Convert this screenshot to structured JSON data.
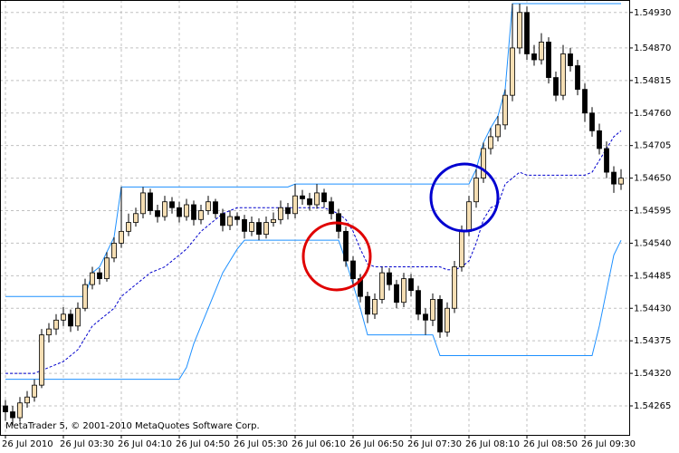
{
  "chart_data": {
    "type": "candlestick",
    "watermark": "MetaTrader 5, © 2001-2010 MetaQuotes Software Corp.",
    "categories": [
      "26 Jul 2010",
      null,
      null,
      null,
      null,
      null,
      null,
      null,
      "26 Jul 03:30",
      null,
      null,
      null,
      null,
      null,
      null,
      null,
      "26 Jul 04:10",
      null,
      null,
      null,
      null,
      null,
      null,
      null,
      "26 Jul 04:50",
      null,
      null,
      null,
      null,
      null,
      null,
      null,
      "26 Jul 05:30",
      null,
      null,
      null,
      null,
      null,
      null,
      null,
      "26 Jul 06:10",
      null,
      null,
      null,
      null,
      null,
      null,
      null,
      "26 Jul 06:50",
      null,
      null,
      null,
      null,
      null,
      null,
      null,
      "26 Jul 07:30",
      null,
      null,
      null,
      null,
      null,
      null,
      null,
      "26 Jul 08:10",
      null,
      null,
      null,
      null,
      null,
      null,
      null,
      "26 Jul 08:50",
      null,
      null,
      null,
      null,
      null,
      null,
      null,
      "26 Jul 09:30",
      null,
      null,
      null,
      null,
      null
    ],
    "open": [
      1.54265,
      1.54255,
      1.54245,
      1.5427,
      1.5428,
      1.543,
      1.54385,
      1.54395,
      1.5441,
      1.5442,
      1.544,
      1.5443,
      1.5447,
      1.5449,
      1.5448,
      1.54515,
      1.5454,
      1.5456,
      1.54575,
      1.5459,
      1.54625,
      1.54595,
      1.54585,
      1.5461,
      1.546,
      1.54585,
      1.54605,
      1.5458,
      1.54595,
      1.5461,
      1.5459,
      1.5457,
      1.54585,
      1.5458,
      1.5456,
      1.54575,
      1.54555,
      1.54575,
      1.5458,
      1.546,
      1.5459,
      1.5462,
      1.54615,
      1.54605,
      1.54625,
      1.5461,
      1.5459,
      1.5456,
      1.5451,
      1.5448,
      1.5445,
      1.5442,
      1.54445,
      1.5449,
      1.5447,
      1.5444,
      1.5448,
      1.5446,
      1.5442,
      1.5441,
      1.54445,
      1.5439,
      1.5443,
      1.545,
      1.5456,
      1.5461,
      1.5465,
      1.547,
      1.5472,
      1.5474,
      1.5479,
      1.5487,
      1.5493,
      1.5486,
      1.5485,
      1.5488,
      1.5482,
      1.5479,
      1.5486,
      1.5484,
      1.548,
      1.5476,
      1.5473,
      1.547,
      1.5466,
      1.5464
    ],
    "high": [
      1.54275,
      1.54265,
      1.5428,
      1.5429,
      1.5431,
      1.54395,
      1.54405,
      1.5442,
      1.54432,
      1.54428,
      1.5444,
      1.5448,
      1.545,
      1.54498,
      1.54525,
      1.5455,
      1.54635,
      1.5459,
      1.546,
      1.54635,
      1.54632,
      1.54605,
      1.5462,
      1.54618,
      1.5461,
      1.54615,
      1.54612,
      1.54605,
      1.5462,
      1.54615,
      1.54598,
      1.54595,
      1.54592,
      1.54588,
      1.54585,
      1.54582,
      1.54585,
      1.54592,
      1.54612,
      1.54608,
      1.5464,
      1.5463,
      1.54625,
      1.5464,
      1.54632,
      1.54618,
      1.54598,
      1.54568,
      1.54518,
      1.54488,
      1.54458,
      1.54455,
      1.545,
      1.54498,
      1.54478,
      1.5449,
      1.54488,
      1.54468,
      1.5443,
      1.54455,
      1.54452,
      1.5444,
      1.5451,
      1.5457,
      1.5462,
      1.54665,
      1.5471,
      1.54735,
      1.54755,
      1.548,
      1.54945,
      1.54945,
      1.5494,
      1.54875,
      1.54895,
      1.54888,
      1.5483,
      1.54875,
      1.5487,
      1.5485,
      1.5481,
      1.5477,
      1.54742,
      1.54712,
      1.5467,
      1.54665
    ],
    "low": [
      1.5424,
      1.54232,
      1.54238,
      1.54262,
      1.54272,
      1.54295,
      1.54372,
      1.54385,
      1.544,
      1.5439,
      1.54392,
      1.54425,
      1.54462,
      1.5447,
      1.54475,
      1.54508,
      1.54532,
      1.54552,
      1.54568,
      1.54582,
      1.54588,
      1.54575,
      1.54578,
      1.5459,
      1.54575,
      1.54578,
      1.5457,
      1.54572,
      1.54588,
      1.54582,
      1.5456,
      1.54562,
      1.5457,
      1.54548,
      1.54552,
      1.54545,
      1.54548,
      1.54568,
      1.54572,
      1.5458,
      1.54582,
      1.54605,
      1.54595,
      1.54598,
      1.546,
      1.5458,
      1.54548,
      1.545,
      1.5447,
      1.5444,
      1.54405,
      1.54412,
      1.54438,
      1.5446,
      1.5443,
      1.54432,
      1.5445,
      1.5441,
      1.54385,
      1.544,
      1.5438,
      1.54382,
      1.54422,
      1.54492,
      1.54552,
      1.546,
      1.54642,
      1.5469,
      1.54712,
      1.54732,
      1.5478,
      1.5486,
      1.5485,
      1.5484,
      1.54842,
      1.5481,
      1.5478,
      1.54782,
      1.5483,
      1.5479,
      1.54745,
      1.5472,
      1.5469,
      1.5465,
      1.54625,
      1.5463
    ],
    "close": [
      1.54255,
      1.54245,
      1.5427,
      1.5428,
      1.543,
      1.54385,
      1.54395,
      1.5441,
      1.5442,
      1.544,
      1.5443,
      1.5447,
      1.5449,
      1.5448,
      1.54515,
      1.5454,
      1.5456,
      1.54575,
      1.5459,
      1.54625,
      1.54595,
      1.54585,
      1.5461,
      1.546,
      1.54585,
      1.54605,
      1.5458,
      1.54595,
      1.5461,
      1.5459,
      1.5457,
      1.54585,
      1.5458,
      1.5456,
      1.54575,
      1.54555,
      1.54575,
      1.5458,
      1.546,
      1.5459,
      1.5462,
      1.54615,
      1.54605,
      1.54625,
      1.5461,
      1.5459,
      1.5456,
      1.5451,
      1.5448,
      1.5445,
      1.5442,
      1.54445,
      1.5449,
      1.5447,
      1.5444,
      1.5448,
      1.5446,
      1.5442,
      1.5441,
      1.54445,
      1.5439,
      1.5443,
      1.545,
      1.5456,
      1.5461,
      1.5465,
      1.547,
      1.5472,
      1.5474,
      1.5479,
      1.5487,
      1.5493,
      1.5486,
      1.5485,
      1.5488,
      1.5482,
      1.5479,
      1.5486,
      1.5484,
      1.548,
      1.5476,
      1.5473,
      1.547,
      1.5466,
      1.5464,
      1.5465
    ],
    "up_color": "#f5deb3",
    "down_color": "#000000",
    "lines": [
      {
        "color": "#1e90ff",
        "dash": false,
        "values": [
          1.5445,
          1.5445,
          1.5445,
          1.5445,
          1.5445,
          1.5445,
          1.5445,
          1.5445,
          1.5445,
          1.5445,
          1.5445,
          1.5445,
          1.5449,
          1.545,
          1.54525,
          1.5455,
          1.54635,
          1.54635,
          1.54635,
          1.54635,
          1.54635,
          1.54635,
          1.54635,
          1.54635,
          1.54635,
          1.54635,
          1.54635,
          1.54635,
          1.54635,
          1.54635,
          1.54635,
          1.54635,
          1.54635,
          1.54635,
          1.54635,
          1.54635,
          1.54635,
          1.54635,
          1.54635,
          1.54635,
          1.5464,
          1.5464,
          1.5464,
          1.5464,
          1.5464,
          1.5464,
          1.5464,
          1.5464,
          1.5464,
          1.5464,
          1.5464,
          1.5464,
          1.5464,
          1.5464,
          1.5464,
          1.5464,
          1.5464,
          1.5464,
          1.5464,
          1.5464,
          1.5464,
          1.5464,
          1.5464,
          1.5464,
          1.5464,
          1.54665,
          1.5471,
          1.54735,
          1.54755,
          1.548,
          1.54945,
          1.54945,
          1.54945,
          1.54945,
          1.54945,
          1.54945,
          1.54945,
          1.54945,
          1.54945,
          1.54945,
          1.54945,
          1.54945,
          1.54945,
          1.54945,
          1.54945,
          1.54945
        ]
      },
      {
        "color": "#1e90ff",
        "dash": false,
        "values": [
          1.5431,
          1.5431,
          1.5431,
          1.5431,
          1.5431,
          1.5431,
          1.5431,
          1.5431,
          1.5431,
          1.5431,
          1.5431,
          1.5431,
          1.5431,
          1.5431,
          1.5431,
          1.5431,
          1.5431,
          1.5431,
          1.5431,
          1.5431,
          1.5431,
          1.5431,
          1.5431,
          1.5431,
          1.5431,
          1.5433,
          1.5437,
          1.544,
          1.5443,
          1.5446,
          1.5449,
          1.5451,
          1.5453,
          1.54545,
          1.54545,
          1.54545,
          1.54545,
          1.54545,
          1.54545,
          1.54545,
          1.54545,
          1.54545,
          1.54545,
          1.54545,
          1.54545,
          1.54545,
          1.54545,
          1.5451,
          1.5447,
          1.5443,
          1.54385,
          1.54385,
          1.54385,
          1.54385,
          1.54385,
          1.54385,
          1.54385,
          1.54385,
          1.54385,
          1.54385,
          1.5435,
          1.5435,
          1.5435,
          1.5435,
          1.5435,
          1.5435,
          1.5435,
          1.5435,
          1.5435,
          1.5435,
          1.5435,
          1.5435,
          1.5435,
          1.5435,
          1.5435,
          1.5435,
          1.5435,
          1.5435,
          1.5435,
          1.5435,
          1.5435,
          1.5435,
          1.544,
          1.5446,
          1.5452,
          1.54545
        ]
      },
      {
        "color": "#0000cd",
        "dash": true,
        "values": [
          1.5432,
          1.5432,
          1.5432,
          1.5432,
          1.5432,
          1.54325,
          1.5433,
          1.54335,
          1.5434,
          1.5435,
          1.5436,
          1.5438,
          1.544,
          1.5441,
          1.5442,
          1.5443,
          1.5445,
          1.5446,
          1.5447,
          1.5448,
          1.5449,
          1.54495,
          1.545,
          1.5451,
          1.5452,
          1.5453,
          1.54545,
          1.5456,
          1.5457,
          1.5458,
          1.5459,
          1.54595,
          1.546,
          1.546,
          1.546,
          1.546,
          1.546,
          1.546,
          1.546,
          1.546,
          1.546,
          1.546,
          1.546,
          1.546,
          1.546,
          1.54595,
          1.5459,
          1.5458,
          1.5456,
          1.5453,
          1.54505,
          1.545,
          1.545,
          1.545,
          1.545,
          1.545,
          1.545,
          1.545,
          1.545,
          1.545,
          1.545,
          1.54495,
          1.54495,
          1.545,
          1.5451,
          1.5454,
          1.5458,
          1.546,
          1.54605,
          1.5464,
          1.5465,
          1.5466,
          1.54655,
          1.54655,
          1.54655,
          1.54655,
          1.54655,
          1.54655,
          1.54655,
          1.54655,
          1.54655,
          1.5466,
          1.5468,
          1.547,
          1.5472,
          1.5473
        ]
      }
    ],
    "ylim": [
      1.54216,
      1.54948
    ],
    "yticks": [
      {
        "value": 1.5493,
        "label": "1.54930"
      },
      {
        "value": 1.5487,
        "label": "1.54870"
      },
      {
        "value": 1.54815,
        "label": "1.54815"
      },
      {
        "value": 1.5476,
        "label": "1.54760"
      },
      {
        "value": 1.54705,
        "label": "1.54705"
      },
      {
        "value": 1.5465,
        "label": "1.54650"
      },
      {
        "value": 1.54595,
        "label": "1.54595"
      },
      {
        "value": 1.5454,
        "label": "1.54540"
      },
      {
        "value": 1.54485,
        "label": "1.54485"
      },
      {
        "value": 1.5443,
        "label": "1.54430"
      },
      {
        "value": 1.54375,
        "label": "1.54375"
      },
      {
        "value": 1.5432,
        "label": "1.54320"
      },
      {
        "value": 1.54265,
        "label": "1.54265"
      }
    ],
    "grid": true
  }
}
